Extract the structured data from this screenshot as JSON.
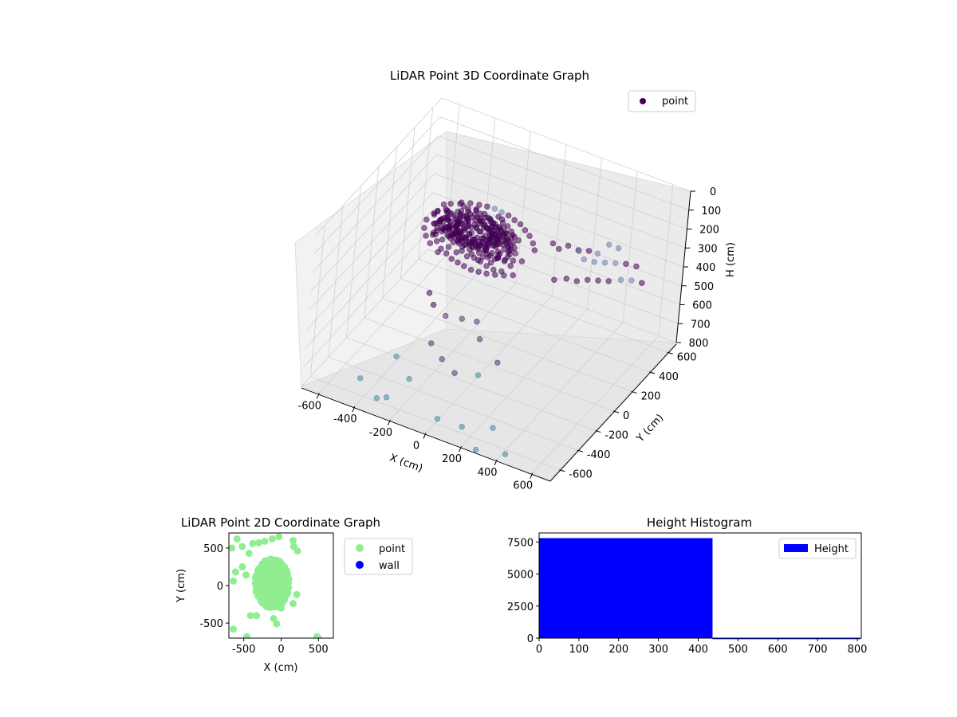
{
  "chart_data": [
    {
      "type": "scatter3d",
      "title": "LiDAR Point 3D Coordinate Graph",
      "xlabel": "X (cm)",
      "ylabel": "Y (cm)",
      "zlabel": "H (cm)",
      "xlim": [
        -700,
        700
      ],
      "ylim": [
        -700,
        700
      ],
      "zlim": [
        0,
        800
      ],
      "x_ticks": [
        "-600",
        "-400",
        "-200",
        "0",
        "200",
        "400",
        "600"
      ],
      "y_ticks": [
        "-600",
        "-400",
        "-200",
        "0",
        "200",
        "400",
        "600"
      ],
      "z_ticks": [
        "0",
        "100",
        "200",
        "300",
        "400",
        "500",
        "600",
        "700",
        "800"
      ],
      "z_inverted": true,
      "legend": [
        {
          "label": "point",
          "color": "#440154"
        }
      ],
      "legend_position": "upper right",
      "colormap": "viridis",
      "grid": true,
      "points": [
        [
          -380,
          120,
          150
        ],
        [
          -340,
          80,
          160
        ],
        [
          -300,
          40,
          170
        ],
        [
          -260,
          20,
          175
        ],
        [
          -220,
          0,
          180
        ],
        [
          -180,
          -20,
          185
        ],
        [
          -140,
          -40,
          185
        ],
        [
          -100,
          -50,
          190
        ],
        [
          -60,
          -60,
          190
        ],
        [
          -20,
          -70,
          195
        ],
        [
          20,
          -70,
          195
        ],
        [
          60,
          -60,
          195
        ],
        [
          100,
          -50,
          190
        ],
        [
          140,
          -30,
          190
        ],
        [
          -360,
          160,
          160
        ],
        [
          -320,
          200,
          160
        ],
        [
          -280,
          220,
          160
        ],
        [
          -240,
          240,
          165
        ],
        [
          -200,
          250,
          165
        ],
        [
          -160,
          255,
          165
        ],
        [
          -120,
          255,
          170
        ],
        [
          -80,
          250,
          170
        ],
        [
          -40,
          240,
          175
        ],
        [
          0,
          225,
          175
        ],
        [
          40,
          200,
          180
        ],
        [
          80,
          170,
          180
        ],
        [
          120,
          130,
          185
        ],
        [
          150,
          90,
          190
        ],
        [
          -400,
          60,
          180
        ],
        [
          -380,
          20,
          200
        ],
        [
          -360,
          -20,
          220
        ],
        [
          -320,
          -60,
          230
        ],
        [
          -280,
          -90,
          240
        ],
        [
          -240,
          -110,
          240
        ],
        [
          -200,
          -130,
          245
        ],
        [
          -160,
          -140,
          245
        ],
        [
          -120,
          -150,
          245
        ],
        [
          -80,
          -150,
          250
        ],
        [
          -40,
          -145,
          250
        ],
        [
          0,
          -135,
          250
        ],
        [
          40,
          -120,
          250
        ],
        [
          80,
          -100,
          250
        ],
        [
          120,
          -80,
          245
        ],
        [
          -420,
          100,
          200
        ],
        [
          -440,
          60,
          220
        ],
        [
          -430,
          20,
          240
        ],
        [
          -400,
          -20,
          250
        ],
        [
          -360,
          -50,
          260
        ],
        [
          -300,
          -80,
          270
        ],
        [
          -100,
          -80,
          230
        ],
        [
          -60,
          -90,
          230
        ],
        [
          -20,
          -100,
          235
        ],
        [
          20,
          -100,
          240
        ],
        [
          60,
          -90,
          240
        ],
        [
          -200,
          60,
          210
        ],
        [
          -160,
          40,
          215
        ],
        [
          -120,
          20,
          220
        ],
        [
          -80,
          10,
          220
        ],
        [
          -40,
          0,
          225
        ],
        [
          0,
          -10,
          230
        ],
        [
          40,
          -20,
          230
        ],
        [
          80,
          -30,
          235
        ],
        [
          220,
          150,
          160
        ],
        [
          260,
          140,
          170
        ],
        [
          300,
          160,
          150
        ],
        [
          340,
          200,
          180
        ],
        [
          380,
          240,
          190
        ],
        [
          420,
          260,
          200
        ],
        [
          460,
          300,
          160
        ],
        [
          500,
          330,
          180
        ],
        [
          320,
          -20,
          230
        ],
        [
          360,
          40,
          240
        ],
        [
          400,
          80,
          260
        ],
        [
          440,
          120,
          260
        ],
        [
          480,
          160,
          270
        ],
        [
          520,
          200,
          280
        ],
        [
          560,
          260,
          290
        ],
        [
          600,
          300,
          300
        ],
        [
          640,
          340,
          320
        ],
        [
          300,
          300,
          250
        ],
        [
          340,
          280,
          270
        ],
        [
          380,
          320,
          290
        ],
        [
          420,
          360,
          300
        ],
        [
          460,
          400,
          310
        ],
        [
          500,
          440,
          320
        ],
        [
          540,
          480,
          340
        ],
        [
          -250,
          -250,
          380
        ],
        [
          -200,
          -300,
          400
        ],
        [
          -120,
          -320,
          420
        ],
        [
          -60,
          -250,
          450
        ],
        [
          0,
          -200,
          470
        ],
        [
          60,
          -280,
          500
        ],
        [
          -140,
          -420,
          520
        ],
        [
          -60,
          -450,
          560
        ],
        [
          20,
          -460,
          600
        ],
        [
          -300,
          -470,
          620
        ],
        [
          -180,
          -560,
          650
        ],
        [
          100,
          -350,
          640
        ],
        [
          160,
          -260,
          600
        ],
        [
          -420,
          -620,
          700
        ],
        [
          -250,
          -660,
          720
        ],
        [
          20,
          -620,
          760
        ],
        [
          -320,
          -620,
          770
        ],
        [
          140,
          -580,
          780
        ],
        [
          280,
          -700,
          790
        ],
        [
          420,
          -650,
          790
        ],
        [
          300,
          -560,
          740
        ]
      ]
    },
    {
      "type": "scatter",
      "title": "LiDAR Point 2D Coordinate Graph",
      "xlabel": "X (cm)",
      "ylabel": "Y (cm)",
      "xlim": [
        -700,
        700
      ],
      "ylim": [
        -700,
        700
      ],
      "x_ticks": [
        "-500",
        "0",
        "500"
      ],
      "y_ticks": [
        "-500",
        "0",
        "500"
      ],
      "legend": [
        {
          "label": "point",
          "color": "#90ee90"
        },
        {
          "label": "wall",
          "color": "#0000ff"
        }
      ],
      "legend_position": "outside right",
      "cluster": {
        "center": [
          -120,
          30
        ],
        "rx": 230,
        "ry": 330,
        "color": "#90ee90"
      },
      "outliers": [
        [
          -660,
          500
        ],
        [
          -590,
          620
        ],
        [
          -520,
          520
        ],
        [
          -430,
          430
        ],
        [
          -380,
          560
        ],
        [
          -300,
          570
        ],
        [
          -220,
          590
        ],
        [
          -120,
          620
        ],
        [
          -30,
          650
        ],
        [
          160,
          600
        ],
        [
          220,
          460
        ],
        [
          170,
          520
        ],
        [
          -610,
          180
        ],
        [
          -520,
          250
        ],
        [
          -470,
          140
        ],
        [
          -640,
          60
        ],
        [
          -410,
          -400
        ],
        [
          -330,
          -400
        ],
        [
          -100,
          -440
        ],
        [
          -60,
          -510
        ],
        [
          -640,
          -580
        ],
        [
          -460,
          -680
        ],
        [
          500,
          -700
        ],
        [
          480,
          -680
        ],
        [
          210,
          -120
        ],
        [
          160,
          -240
        ],
        [
          0,
          -300
        ]
      ]
    },
    {
      "type": "histogram",
      "title": "Height Histogram",
      "xlim": [
        0,
        810
      ],
      "ylim": [
        0,
        8200
      ],
      "x_ticks": [
        "0",
        "100",
        "200",
        "300",
        "400",
        "500",
        "600",
        "700",
        "800"
      ],
      "y_ticks": [
        "0",
        "2500",
        "5000",
        "7500"
      ],
      "legend": [
        {
          "label": "Height",
          "color": "#0000ff"
        }
      ],
      "legend_position": "upper right",
      "bins": [
        0,
        436,
        808
      ],
      "counts": [
        7800,
        12
      ]
    }
  ]
}
